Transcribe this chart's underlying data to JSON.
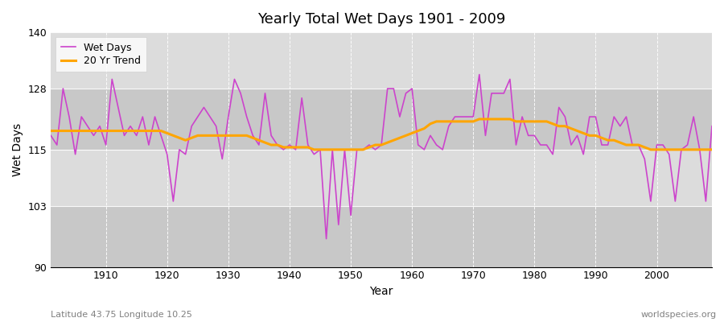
{
  "title": "Yearly Total Wet Days 1901 - 2009",
  "xlabel": "Year",
  "ylabel": "Wet Days",
  "xlim": [
    1901,
    2009
  ],
  "ylim": [
    90,
    140
  ],
  "yticks": [
    90,
    103,
    115,
    128,
    140
  ],
  "xticks": [
    1910,
    1920,
    1930,
    1940,
    1950,
    1960,
    1970,
    1980,
    1990,
    2000
  ],
  "wet_days_color": "#CC44CC",
  "trend_color": "#FFA500",
  "background_color": "#DCDCDC",
  "band_color_light": "#DCDCDC",
  "band_color_dark": "#C8C8C8",
  "fig_background": "#FFFFFF",
  "legend_labels": [
    "Wet Days",
    "20 Yr Trend"
  ],
  "footnote_left": "Latitude 43.75 Longitude 10.25",
  "footnote_right": "worldspecies.org",
  "wet_days": {
    "1901": 118,
    "1902": 116,
    "1903": 128,
    "1904": 122,
    "1905": 114,
    "1906": 122,
    "1907": 120,
    "1908": 118,
    "1909": 120,
    "1910": 116,
    "1911": 130,
    "1912": 124,
    "1913": 118,
    "1914": 120,
    "1915": 118,
    "1916": 122,
    "1917": 116,
    "1918": 122,
    "1919": 118,
    "1920": 114,
    "1921": 104,
    "1922": 115,
    "1923": 114,
    "1924": 120,
    "1925": 122,
    "1926": 124,
    "1927": 122,
    "1928": 120,
    "1929": 113,
    "1930": 122,
    "1931": 130,
    "1932": 127,
    "1933": 122,
    "1934": 118,
    "1935": 116,
    "1936": 127,
    "1937": 118,
    "1938": 116,
    "1939": 115,
    "1940": 116,
    "1941": 115,
    "1942": 126,
    "1943": 116,
    "1944": 114,
    "1945": 115,
    "1946": 96,
    "1947": 115,
    "1948": 99,
    "1949": 115,
    "1950": 101,
    "1951": 115,
    "1952": 115,
    "1953": 116,
    "1954": 115,
    "1955": 116,
    "1956": 128,
    "1957": 128,
    "1958": 122,
    "1959": 127,
    "1960": 128,
    "1961": 116,
    "1962": 115,
    "1963": 118,
    "1964": 116,
    "1965": 115,
    "1966": 120,
    "1967": 122,
    "1968": 122,
    "1969": 122,
    "1970": 122,
    "1971": 131,
    "1972": 118,
    "1973": 127,
    "1974": 127,
    "1975": 127,
    "1976": 130,
    "1977": 116,
    "1978": 122,
    "1979": 118,
    "1980": 118,
    "1981": 116,
    "1982": 116,
    "1983": 114,
    "1984": 124,
    "1985": 122,
    "1986": 116,
    "1987": 118,
    "1988": 114,
    "1989": 122,
    "1990": 122,
    "1991": 116,
    "1992": 116,
    "1993": 122,
    "1994": 120,
    "1995": 122,
    "1996": 116,
    "1997": 116,
    "1998": 113,
    "1999": 104,
    "2000": 116,
    "2001": 116,
    "2002": 114,
    "2003": 104,
    "2004": 115,
    "2005": 116,
    "2006": 122,
    "2007": 115,
    "2008": 104,
    "2009": 120
  },
  "trend_20yr": {
    "1901": 119.0,
    "1902": 119.0,
    "1903": 119.0,
    "1904": 119.0,
    "1905": 119.0,
    "1906": 119.0,
    "1907": 119.0,
    "1908": 119.0,
    "1909": 119.0,
    "1910": 119.0,
    "1911": 119.0,
    "1912": 119.0,
    "1913": 119.0,
    "1914": 119.0,
    "1915": 119.0,
    "1916": 119.0,
    "1917": 119.0,
    "1918": 119.0,
    "1919": 119.0,
    "1920": 118.5,
    "1921": 118.0,
    "1922": 117.5,
    "1923": 117.0,
    "1924": 117.5,
    "1925": 118.0,
    "1926": 118.0,
    "1927": 118.0,
    "1928": 118.0,
    "1929": 118.0,
    "1930": 118.0,
    "1931": 118.0,
    "1932": 118.0,
    "1933": 118.0,
    "1934": 117.5,
    "1935": 117.0,
    "1936": 116.5,
    "1937": 116.0,
    "1938": 116.0,
    "1939": 115.5,
    "1940": 115.5,
    "1941": 115.5,
    "1942": 115.5,
    "1943": 115.5,
    "1944": 115.0,
    "1945": 115.0,
    "1946": 115.0,
    "1947": 115.0,
    "1948": 115.0,
    "1949": 115.0,
    "1950": 115.0,
    "1951": 115.0,
    "1952": 115.0,
    "1953": 115.5,
    "1954": 116.0,
    "1955": 116.0,
    "1956": 116.5,
    "1957": 117.0,
    "1958": 117.5,
    "1959": 118.0,
    "1960": 118.5,
    "1961": 119.0,
    "1962": 119.5,
    "1963": 120.5,
    "1964": 121.0,
    "1965": 121.0,
    "1966": 121.0,
    "1967": 121.0,
    "1968": 121.0,
    "1969": 121.0,
    "1970": 121.0,
    "1971": 121.5,
    "1972": 121.5,
    "1973": 121.5,
    "1974": 121.5,
    "1975": 121.5,
    "1976": 121.5,
    "1977": 121.0,
    "1978": 121.0,
    "1979": 121.0,
    "1980": 121.0,
    "1981": 121.0,
    "1982": 121.0,
    "1983": 120.5,
    "1984": 120.0,
    "1985": 120.0,
    "1986": 119.5,
    "1987": 119.0,
    "1988": 118.5,
    "1989": 118.0,
    "1990": 118.0,
    "1991": 117.5,
    "1992": 117.0,
    "1993": 117.0,
    "1994": 116.5,
    "1995": 116.0,
    "1996": 116.0,
    "1997": 116.0,
    "1998": 115.5,
    "1999": 115.0,
    "2000": 115.0,
    "2001": 115.0,
    "2002": 115.0,
    "2003": 115.0,
    "2004": 115.0,
    "2005": 115.0,
    "2006": 115.0,
    "2007": 115.0,
    "2008": 115.0,
    "2009": 115.0
  },
  "hband_yticks": [
    90,
    103,
    115,
    128,
    140
  ]
}
